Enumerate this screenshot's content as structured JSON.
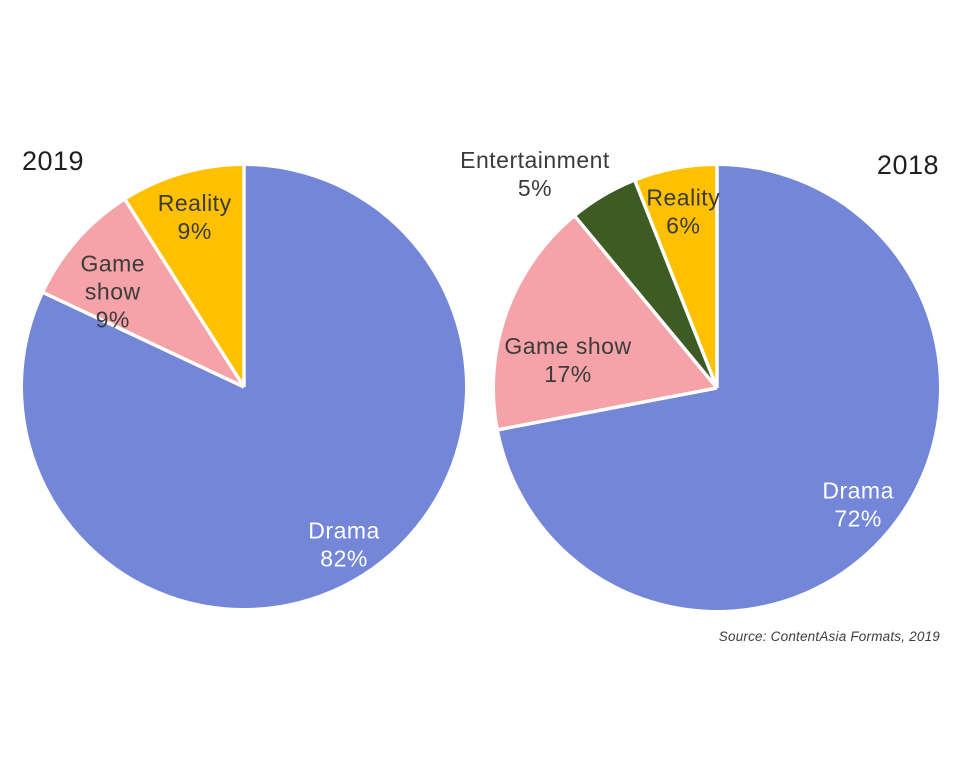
{
  "page": {
    "background": "#FFFFFF"
  },
  "source_note": "Source: ContentAsia Formats, 2019",
  "colors": {
    "drama_blue": "#7386D8",
    "game_show_pink": "#F5A3A8",
    "reality_yellow": "#FFC000",
    "entertainment_green": "#3D5B23",
    "label_dark": "#3B3B3B",
    "label_light": "#FFFFFF",
    "slice_divider": "#FFFFFF"
  },
  "chart_data": [
    {
      "type": "pie",
      "title": "2019",
      "title_position": "top-left",
      "units": "percent",
      "start_angle_deg": 0,
      "direction": "clockwise",
      "legend": "none",
      "slices": [
        {
          "label": "Drama",
          "value": 82,
          "color": "#7386D8",
          "label_color": "#FFFFFF",
          "label_lines": [
            "Drama",
            "82%"
          ],
          "label_r": 0.845
        },
        {
          "label": "Game show",
          "value": 9,
          "color": "#F5A3A8",
          "label_color": "#3B3B3B",
          "label_lines": [
            "Game",
            "show",
            "9%"
          ],
          "label_r": 0.734,
          "label_angle": 306
        },
        {
          "label": "Reality",
          "value": 9,
          "color": "#FFC000",
          "label_color": "#3B3B3B",
          "label_lines": [
            "Reality",
            "9%"
          ],
          "label_r": 0.8
        }
      ]
    },
    {
      "type": "pie",
      "title": "2018",
      "title_position": "top-right",
      "units": "percent",
      "start_angle_deg": 0,
      "direction": "clockwise",
      "legend": "none",
      "slices": [
        {
          "label": "Drama",
          "value": 72,
          "color": "#7386D8",
          "label_color": "#FFFFFF",
          "label_lines": [
            "Drama",
            "72%"
          ],
          "label_r": 0.825
        },
        {
          "label": "Game show",
          "value": 17,
          "color": "#F5A3A8",
          "label_color": "#3B3B3B",
          "label_lines": [
            "Game show",
            "17%"
          ],
          "label_r": 0.683,
          "label_angle": 280.6
        },
        {
          "label": "Entertainment",
          "value": 5,
          "color": "#3D5B23",
          "label_color": "#3B3B3B",
          "label_lines": [
            "Entertainment",
            "5%"
          ],
          "label_r": 1.265,
          "label_angle": 319.6
        },
        {
          "label": "Reality",
          "value": 6,
          "color": "#FFC000",
          "label_color": "#3B3B3B",
          "label_lines": [
            "Reality",
            "6%"
          ],
          "label_r": 0.81
        }
      ]
    }
  ]
}
